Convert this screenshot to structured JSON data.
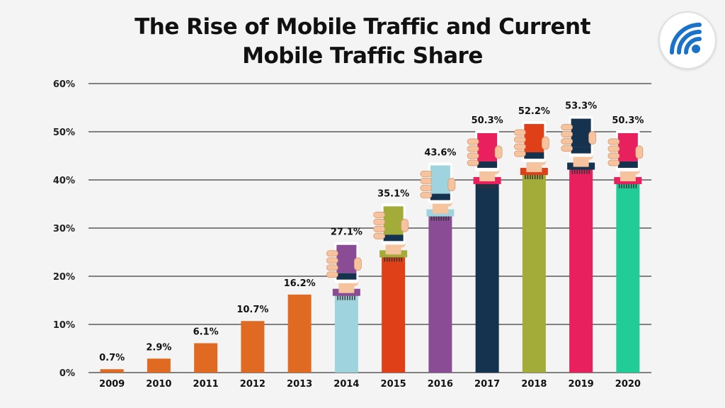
{
  "title_lines": [
    "The Rise of Mobile Traffic and Current",
    "Mobile Traffic Share"
  ],
  "logo": {
    "icon": "wifi-signal-icon",
    "color": "#1a73c8"
  },
  "chart_data": {
    "type": "bar",
    "categories": [
      "2009",
      "2010",
      "2011",
      "2012",
      "2013",
      "2014",
      "2015",
      "2016",
      "2017",
      "2018",
      "2019",
      "2020"
    ],
    "values": [
      0.7,
      2.9,
      6.1,
      10.7,
      16.2,
      27.1,
      35.1,
      43.6,
      50.3,
      52.2,
      53.3,
      50.3
    ],
    "data_labels": [
      "0.7%",
      "2.9%",
      "6.1%",
      "10.7%",
      "16.2%",
      "27.1%",
      "35.1%",
      "43.6%",
      "50.3%",
      "52.2%",
      "53.3%",
      "50.3%"
    ],
    "bar_colors": [
      "#e06a22",
      "#e06a22",
      "#e06a22",
      "#e06a22",
      "#e06a22",
      "#9fd3dd",
      "#e04018",
      "#8a4c94",
      "#15324f",
      "#a3ac38",
      "#e8205e",
      "#22cc96"
    ],
    "screen_colors": [
      "",
      "",
      "",
      "",
      "",
      "#8a4c94",
      "#a3ac38",
      "#9fd3dd",
      "#e8205e",
      "#e04018",
      "#15324f",
      "#e8205e"
    ],
    "phone_icon": "hand-holding-phone-icon",
    "ylim": [
      0,
      60
    ],
    "yticks": [
      "0%",
      "10%",
      "20%",
      "30%",
      "40%",
      "50%",
      "60%"
    ],
    "xlabel": "",
    "ylabel": "",
    "grid": true
  }
}
